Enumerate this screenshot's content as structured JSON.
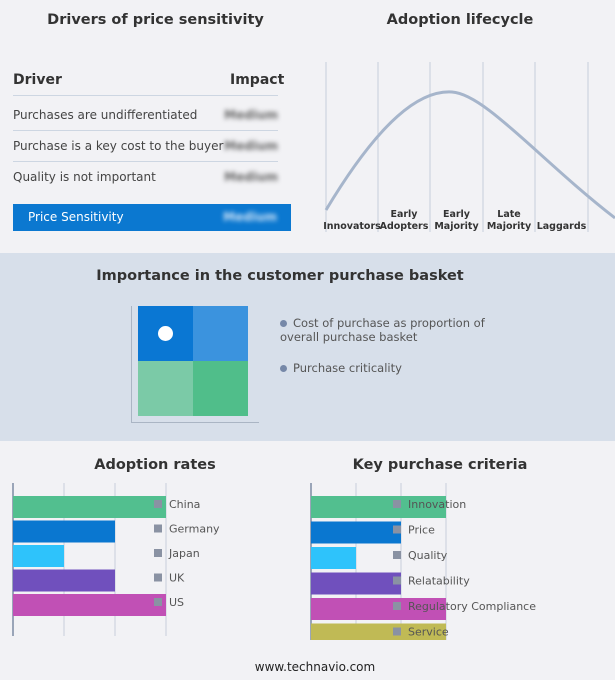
{
  "drivers": {
    "title": "Drivers of price sensitivity",
    "col_driver": "Driver",
    "col_impact": "Impact",
    "rows": [
      {
        "driver": "Purchases are undifferentiated",
        "impact": "Medium"
      },
      {
        "driver": "Purchase is a key cost to the buyer",
        "impact": "Medium"
      },
      {
        "driver": "Quality is not important",
        "impact": "Medium"
      }
    ],
    "highlight": {
      "driver": "Price Sensitivity",
      "impact": "Medium"
    },
    "highlight_color": "#0b78d0"
  },
  "lifecycle": {
    "title": "Adoption lifecycle",
    "stages": [
      "Innovators",
      "Early\nAdopters",
      "Early\nMajority",
      "Late\nMajority",
      "Laggards"
    ]
  },
  "basket": {
    "title": "Importance in the customer purchase basket",
    "legend": [
      "Cost of purchase as proportion of overall purchase basket",
      "Purchase criticality"
    ],
    "colors": [
      "#0a77d3",
      "#3b93de",
      "#7bcaa7",
      "#50be8a"
    ]
  },
  "chart_data": [
    {
      "type": "bar",
      "title": "Adoption rates",
      "orientation": "horizontal",
      "categories": [
        "China",
        "Germany",
        "Japan",
        "UK",
        "US"
      ],
      "values": [
        3,
        2,
        1,
        2,
        3
      ],
      "xlim": [
        0,
        3
      ],
      "grid": true,
      "legend": "right",
      "colors": [
        "#52bf8f",
        "#0a77d0",
        "#2ec3fb",
        "#7050bd",
        "#c150b5"
      ]
    },
    {
      "type": "bar",
      "title": "Key purchase criteria",
      "orientation": "horizontal",
      "categories": [
        "Innovation",
        "Price",
        "Quality",
        "Relatability",
        "Regulatory Compliance",
        "Service"
      ],
      "values": [
        3,
        2,
        1,
        2,
        3,
        3
      ],
      "xlim": [
        0,
        3
      ],
      "grid": true,
      "legend": "right",
      "colors": [
        "#52bf8f",
        "#0a77d0",
        "#2ec3fb",
        "#7050bd",
        "#c150b5",
        "#c0ba55"
      ]
    }
  ],
  "footer": "www.technavio.com"
}
